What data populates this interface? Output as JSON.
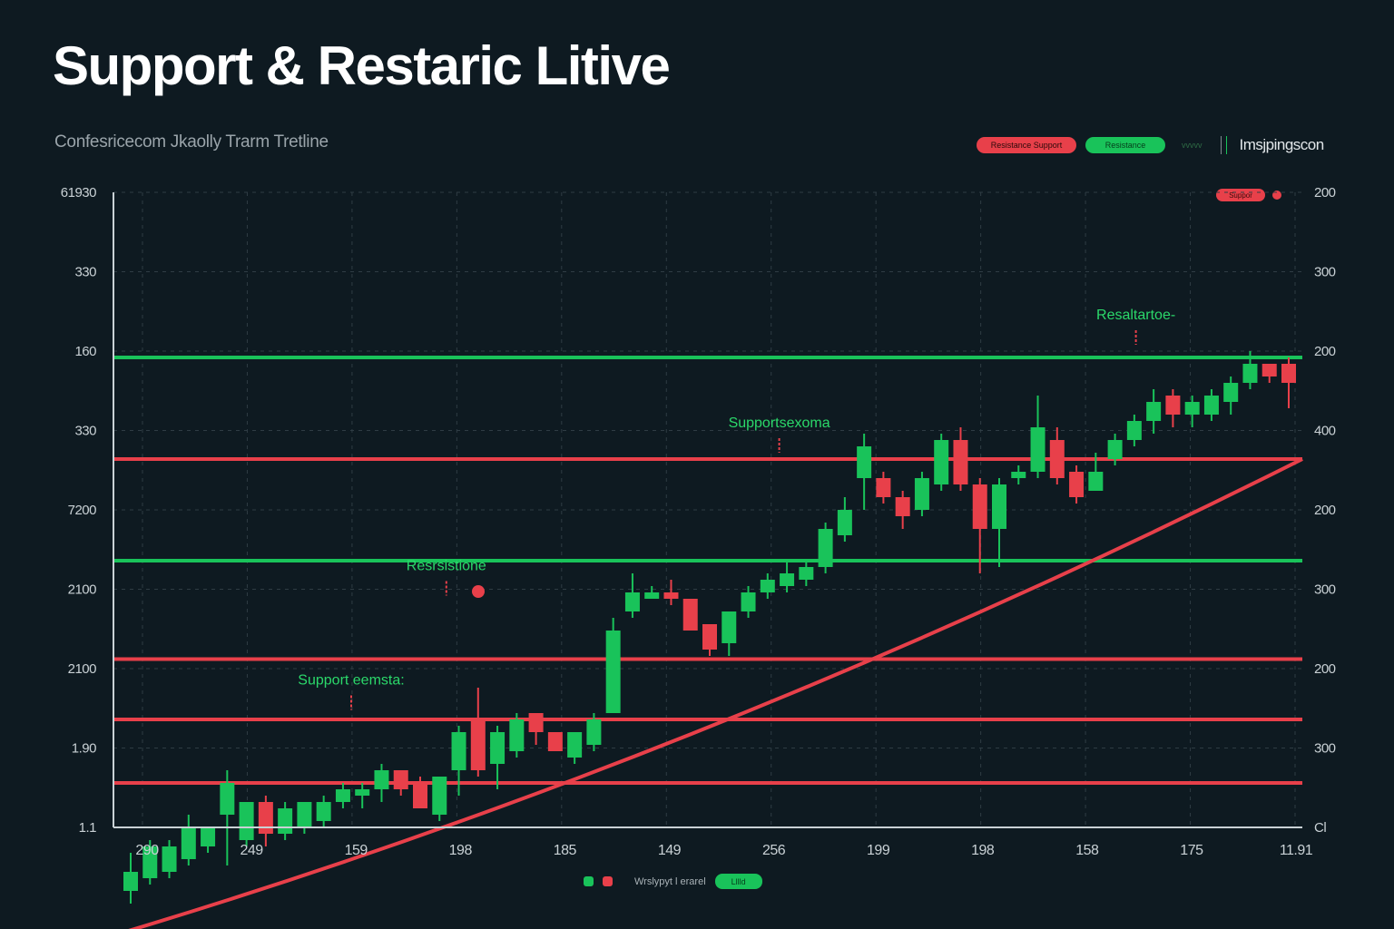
{
  "chart_data": {
    "type": "candlestick",
    "title": "Support & Restaric Litive",
    "subtitle": "Confesricecom Jkaolly Trarm Tretline",
    "left_y_ticks": [
      "61930",
      "330",
      "160",
      "330",
      "7200",
      "2100",
      "2100",
      "1.90",
      "1.1"
    ],
    "right_y_ticks": [
      "200",
      "300",
      "200",
      "400",
      "200",
      "300",
      "200",
      "300",
      "Cl"
    ],
    "x_ticks": [
      "290",
      "249",
      "159",
      "198",
      "185",
      "149",
      "256",
      "199",
      "198",
      "158",
      "175",
      "11.91"
    ],
    "grid": true,
    "ylim": [
      0,
      100
    ],
    "horizontal_levels": [
      {
        "color": "green",
        "y": 74
      },
      {
        "color": "red",
        "y": 58
      },
      {
        "color": "green",
        "y": 42
      },
      {
        "color": "red",
        "y": 26.5
      },
      {
        "color": "red",
        "y": 17
      },
      {
        "color": "red",
        "y": 7
      }
    ],
    "trendline": {
      "color": "red",
      "points": [
        [
          0,
          -17
        ],
        [
          50,
          11
        ],
        [
          100,
          58
        ]
      ]
    },
    "annotations": [
      {
        "text": "Resaltartoe-",
        "x": 86,
        "y": 80,
        "color": "green"
      },
      {
        "text": "Supportsexoma",
        "x": 56,
        "y": 63,
        "color": "green"
      },
      {
        "text": "Resrsistione",
        "x": 28,
        "y": 40.5,
        "color": "green"
      },
      {
        "text": "Support eemsta:",
        "x": 20,
        "y": 22.5,
        "color": "green"
      }
    ],
    "candles": [
      {
        "o": -10,
        "c": -7,
        "h": -4,
        "l": -12
      },
      {
        "o": -8,
        "c": -3,
        "h": -2,
        "l": -9
      },
      {
        "o": -7,
        "c": -3,
        "h": -2,
        "l": -8
      },
      {
        "o": -5,
        "c": 0,
        "h": 2,
        "l": -6
      },
      {
        "o": -3,
        "c": 0,
        "h": 0,
        "l": -4
      },
      {
        "o": 2,
        "c": 7,
        "h": 9,
        "l": -6
      },
      {
        "o": -2,
        "c": 4,
        "h": 4,
        "l": -3
      },
      {
        "o": 4,
        "c": -1,
        "h": 5,
        "l": -3
      },
      {
        "o": -1,
        "c": 3,
        "h": 4,
        "l": -2
      },
      {
        "o": 0,
        "c": 4,
        "h": 4,
        "l": -1
      },
      {
        "o": 1,
        "c": 4,
        "h": 5,
        "l": 0
      },
      {
        "o": 4,
        "c": 6,
        "h": 7,
        "l": 3
      },
      {
        "o": 5,
        "c": 6,
        "h": 7,
        "l": 3
      },
      {
        "o": 6,
        "c": 9,
        "h": 10,
        "l": 4
      },
      {
        "o": 9,
        "c": 6,
        "h": 9,
        "l": 5
      },
      {
        "o": 7,
        "c": 3,
        "h": 8,
        "l": 3
      },
      {
        "o": 2,
        "c": 8,
        "h": 8,
        "l": 1
      },
      {
        "o": 9,
        "c": 15,
        "h": 16,
        "l": 5
      },
      {
        "o": 17,
        "c": 9,
        "h": 22,
        "l": 8
      },
      {
        "o": 10,
        "c": 15,
        "h": 16,
        "l": 6
      },
      {
        "o": 12,
        "c": 17,
        "h": 18,
        "l": 11
      },
      {
        "o": 18,
        "c": 15,
        "h": 18,
        "l": 13
      },
      {
        "o": 15,
        "c": 12,
        "h": 15,
        "l": 12
      },
      {
        "o": 11,
        "c": 15,
        "h": 15,
        "l": 10
      },
      {
        "o": 13,
        "c": 17,
        "h": 18,
        "l": 12
      },
      {
        "o": 18,
        "c": 31,
        "h": 33,
        "l": 18
      },
      {
        "o": 34,
        "c": 37,
        "h": 40,
        "l": 33
      },
      {
        "o": 36,
        "c": 37,
        "h": 38,
        "l": 36
      },
      {
        "o": 37,
        "c": 36,
        "h": 39,
        "l": 35
      },
      {
        "o": 36,
        "c": 31,
        "h": 36,
        "l": 31
      },
      {
        "o": 32,
        "c": 28,
        "h": 32,
        "l": 27
      },
      {
        "o": 29,
        "c": 34,
        "h": 34,
        "l": 27
      },
      {
        "o": 34,
        "c": 37,
        "h": 38,
        "l": 33
      },
      {
        "o": 37,
        "c": 39,
        "h": 40,
        "l": 36
      },
      {
        "o": 38,
        "c": 40,
        "h": 42,
        "l": 37
      },
      {
        "o": 39,
        "c": 41,
        "h": 42,
        "l": 38
      },
      {
        "o": 41,
        "c": 47,
        "h": 48,
        "l": 40
      },
      {
        "o": 46,
        "c": 50,
        "h": 52,
        "l": 45
      },
      {
        "o": 55,
        "c": 60,
        "h": 62,
        "l": 50
      },
      {
        "o": 55,
        "c": 52,
        "h": 56,
        "l": 51
      },
      {
        "o": 52,
        "c": 49,
        "h": 53,
        "l": 47
      },
      {
        "o": 50,
        "c": 55,
        "h": 56,
        "l": 49
      },
      {
        "o": 54,
        "c": 61,
        "h": 62,
        "l": 53
      },
      {
        "o": 61,
        "c": 54,
        "h": 63,
        "l": 53
      },
      {
        "o": 54,
        "c": 47,
        "h": 55,
        "l": 40
      },
      {
        "o": 47,
        "c": 54,
        "h": 55,
        "l": 41
      },
      {
        "o": 55,
        "c": 56,
        "h": 57,
        "l": 54
      },
      {
        "o": 56,
        "c": 63,
        "h": 68,
        "l": 55
      },
      {
        "o": 61,
        "c": 55,
        "h": 63,
        "l": 54
      },
      {
        "o": 56,
        "c": 52,
        "h": 57,
        "l": 51
      },
      {
        "o": 53,
        "c": 56,
        "h": 59,
        "l": 53
      },
      {
        "o": 58,
        "c": 61,
        "h": 62,
        "l": 57
      },
      {
        "o": 61,
        "c": 64,
        "h": 65,
        "l": 60
      },
      {
        "o": 64,
        "c": 67,
        "h": 69,
        "l": 62
      },
      {
        "o": 68,
        "c": 65,
        "h": 69,
        "l": 63
      },
      {
        "o": 65,
        "c": 67,
        "h": 68,
        "l": 63
      },
      {
        "o": 65,
        "c": 68,
        "h": 69,
        "l": 64
      },
      {
        "o": 67,
        "c": 70,
        "h": 71,
        "l": 65
      },
      {
        "o": 70,
        "c": 73,
        "h": 75,
        "l": 69
      },
      {
        "o": 73,
        "c": 71,
        "h": 73,
        "l": 70
      },
      {
        "o": 73,
        "c": 70,
        "h": 74,
        "l": 66
      }
    ],
    "colors": {
      "up": "#19c35a",
      "down": "#e8404a",
      "grid": "#2f3c44",
      "bg": "#0e1a21"
    }
  },
  "legend_top": {
    "red_pill": "Resistance Support",
    "green_pill": "Resistance",
    "dim_text": "vvvvv",
    "brand": "Imsjpingscon"
  },
  "mini_legend": {
    "label": "Suppor"
  },
  "bottom_legend": {
    "text": "Wrslypyt l erarel",
    "pill": "Lllld"
  }
}
